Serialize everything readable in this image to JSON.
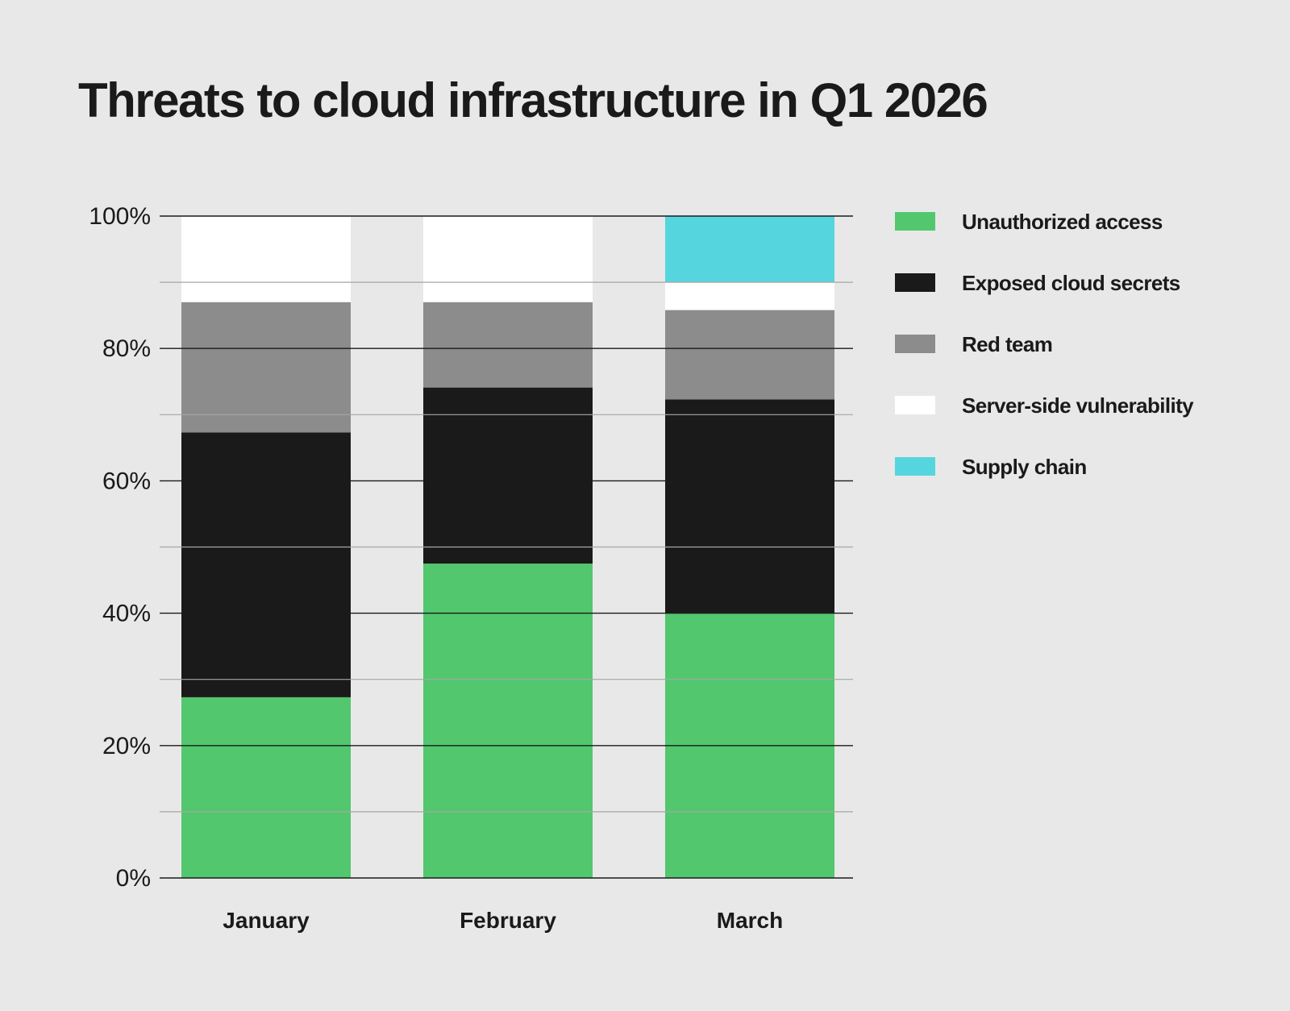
{
  "chart_data": {
    "type": "bar",
    "stacked": true,
    "title": "Threats to cloud infrastructure in Q1 2026",
    "xlabel": "",
    "ylabel": "",
    "ylim": [
      0,
      100
    ],
    "yticks": [
      "0%",
      "20%",
      "40%",
      "60%",
      "80%",
      "100%"
    ],
    "grid": true,
    "legend_position": "right",
    "categories": [
      "January",
      "February",
      "March"
    ],
    "series": [
      {
        "name": "Unauthorized access",
        "color": "#52c76e",
        "values": [
          27.3,
          47.5,
          40.0
        ]
      },
      {
        "name": "Exposed cloud secrets",
        "color": "#1a1a1a",
        "values": [
          40.0,
          26.6,
          32.3
        ]
      },
      {
        "name": "Red team",
        "color": "#8c8c8c",
        "values": [
          19.7,
          12.9,
          13.5
        ]
      },
      {
        "name": "Server-side vulnerability",
        "color": "#ffffff",
        "values": [
          13.0,
          13.0,
          4.2
        ]
      },
      {
        "name": "Supply chain",
        "color": "#55d6de",
        "values": [
          0,
          0,
          10.0
        ]
      }
    ]
  }
}
